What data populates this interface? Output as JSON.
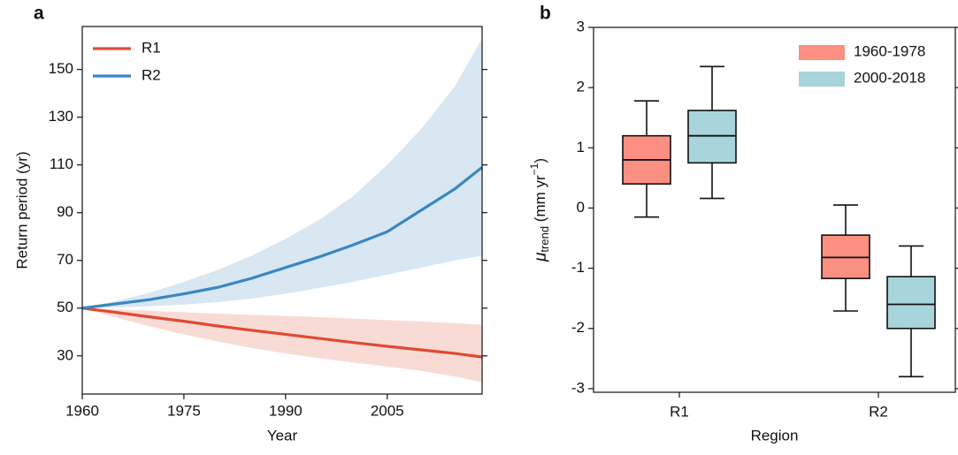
{
  "chart_data": [
    {
      "type": "line",
      "label": "a",
      "xlabel": "Year",
      "ylabel": "Return period (yr)",
      "x": [
        1960,
        1965,
        1970,
        1975,
        1980,
        1985,
        1990,
        1995,
        2000,
        2005,
        2010,
        2015,
        2019
      ],
      "series": [
        {
          "name": "R1",
          "color": "#e04a33",
          "values": [
            50,
            48.2,
            46.3,
            44.5,
            42.5,
            40.7,
            39,
            37.3,
            35.6,
            34,
            32.5,
            31,
            29.5
          ],
          "upper": [
            50,
            49.5,
            48.9,
            48.3,
            47.7,
            47.2,
            46.7,
            46.2,
            45.6,
            45,
            44.4,
            43.7,
            43
          ],
          "lower": [
            50,
            46,
            42.3,
            39,
            36,
            33.3,
            31,
            29,
            27.2,
            25.5,
            23.7,
            21.3,
            19
          ]
        },
        {
          "name": "R2",
          "color": "#3a87c0",
          "values": [
            50,
            51.8,
            53.6,
            56,
            58.7,
            62.5,
            67,
            71.5,
            76.5,
            82,
            91,
            100,
            109
          ],
          "upper": [
            50,
            53,
            56.5,
            61,
            66,
            72,
            79,
            87,
            97,
            110,
            125,
            143,
            163
          ],
          "lower": [
            50,
            50.3,
            50.8,
            51.5,
            52.5,
            54,
            56,
            58.5,
            61,
            64,
            67,
            70,
            72
          ]
        }
      ],
      "xlim": [
        1960,
        2019
      ],
      "xticks": [
        1960,
        1975,
        1990,
        2005
      ],
      "ylim": [
        14,
        168
      ],
      "yticks": [
        30,
        50,
        70,
        90,
        110,
        130,
        150
      ],
      "legend": "upper-left"
    },
    {
      "type": "box",
      "label": "b",
      "xlabel": "Region",
      "ylabel": {
        "symbol": "μ",
        "subscript": "trend",
        "unit": " (mm yr",
        "superscript": "−1",
        "close": ")"
      },
      "categories": [
        "R1",
        "R2"
      ],
      "series": [
        {
          "name": "1960-1978",
          "color": "#fa8f82",
          "min": [
            -0.15,
            -1.71
          ],
          "q1": [
            0.4,
            -1.17
          ],
          "median": [
            0.8,
            -0.82
          ],
          "q3": [
            1.2,
            -0.45
          ],
          "max": [
            1.78,
            0.05
          ]
        },
        {
          "name": "2000-2018",
          "color": "#a8d5db",
          "min": [
            0.16,
            -2.8
          ],
          "q1": [
            0.75,
            -2.0
          ],
          "median": [
            1.2,
            -1.6
          ],
          "q3": [
            1.62,
            -1.14
          ],
          "max": [
            2.35,
            -0.63
          ]
        }
      ],
      "ylim": [
        -3.06,
        3
      ],
      "yticks": [
        -3,
        -2,
        -1,
        0,
        1,
        2,
        3
      ],
      "legend": "upper-right"
    }
  ]
}
